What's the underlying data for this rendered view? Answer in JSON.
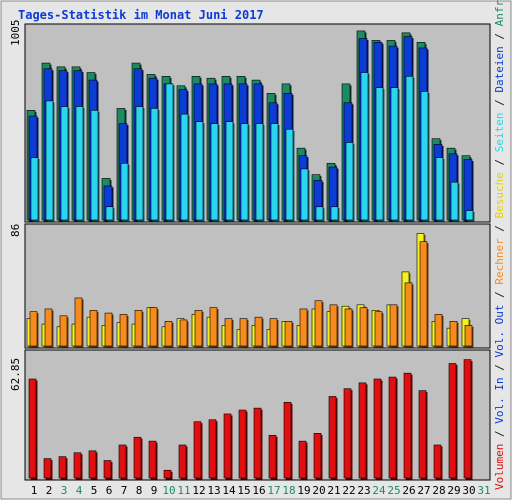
{
  "chart_data": [
    {
      "type": "bar",
      "panel": "top",
      "title": "Tages-Statistik im Monat Juni 2017",
      "y_max_label": "1005",
      "ylim": [
        0,
        1005
      ],
      "categories": [
        "1",
        "2",
        "3",
        "4",
        "5",
        "6",
        "7",
        "8",
        "9",
        "10",
        "11",
        "12",
        "13",
        "14",
        "15",
        "16",
        "17",
        "18",
        "19",
        "20",
        "21",
        "22",
        "23",
        "24",
        "25",
        "26",
        "27",
        "28",
        "29",
        "30",
        "31"
      ],
      "weekend_days": [
        "3",
        "4",
        "10",
        "11",
        "17",
        "18",
        "24",
        "25",
        "31"
      ],
      "series": [
        {
          "name": "Anfragen",
          "color": "#1d8a63",
          "values": [
            580,
            830,
            810,
            810,
            780,
            220,
            590,
            830,
            770,
            760,
            710,
            760,
            750,
            760,
            760,
            740,
            670,
            720,
            380,
            240,
            300,
            720,
            1000,
            950,
            950,
            990,
            940,
            430,
            380,
            340,
            0
          ]
        },
        {
          "name": "Dateien",
          "color": "#0d3bd6",
          "values": [
            550,
            800,
            790,
            790,
            740,
            180,
            510,
            800,
            750,
            720,
            690,
            720,
            720,
            720,
            720,
            720,
            620,
            670,
            340,
            210,
            280,
            620,
            960,
            940,
            920,
            970,
            910,
            400,
            350,
            320,
            0
          ]
        },
        {
          "name": "Seiten",
          "color": "#2bd5ee",
          "values": [
            330,
            630,
            600,
            600,
            580,
            70,
            300,
            600,
            590,
            720,
            560,
            520,
            510,
            520,
            510,
            510,
            510,
            480,
            270,
            70,
            70,
            410,
            780,
            700,
            700,
            760,
            680,
            330,
            200,
            50,
            0
          ]
        }
      ]
    },
    {
      "type": "bar",
      "panel": "middle",
      "y_max_label": "86",
      "ylim": [
        0,
        86
      ],
      "categories": [
        "1",
        "2",
        "3",
        "4",
        "5",
        "6",
        "7",
        "8",
        "9",
        "10",
        "11",
        "12",
        "13",
        "14",
        "15",
        "16",
        "17",
        "18",
        "19",
        "20",
        "21",
        "22",
        "23",
        "24",
        "25",
        "26",
        "27",
        "28",
        "29",
        "30",
        "31"
      ],
      "series": [
        {
          "name": "Besuche",
          "color": "#f2f21c",
          "values": [
            20,
            16,
            14,
            16,
            21,
            15,
            17,
            16,
            28,
            14,
            20,
            23,
            21,
            15,
            12,
            15,
            12,
            18,
            15,
            27,
            25,
            29,
            30,
            26,
            30,
            54,
            82,
            18,
            13,
            20,
            0
          ]
        },
        {
          "name": "Rechner",
          "color": "#f78c1c",
          "values": [
            25,
            27,
            22,
            35,
            26,
            24,
            23,
            26,
            28,
            18,
            19,
            26,
            28,
            20,
            20,
            21,
            20,
            18,
            27,
            33,
            30,
            27,
            28,
            25,
            30,
            46,
            76,
            23,
            18,
            15,
            0
          ]
        }
      ]
    },
    {
      "type": "bar",
      "panel": "bottom",
      "y_max_label": "62.85",
      "ylim": [
        0,
        62.85
      ],
      "categories": [
        "1",
        "2",
        "3",
        "4",
        "5",
        "6",
        "7",
        "8",
        "9",
        "10",
        "11",
        "12",
        "13",
        "14",
        "15",
        "16",
        "17",
        "18",
        "19",
        "20",
        "21",
        "22",
        "23",
        "24",
        "25",
        "26",
        "27",
        "28",
        "29",
        "30",
        "31"
      ],
      "series": [
        {
          "name": "Volumen",
          "color": "#e10f0f",
          "values": [
            51,
            10,
            11,
            13,
            14,
            9,
            17,
            21,
            19,
            4,
            17,
            29,
            30,
            33,
            35,
            36,
            22,
            39,
            19,
            23,
            42,
            46,
            49,
            51,
            52,
            54,
            45,
            17,
            59,
            61,
            0
          ]
        }
      ]
    }
  ],
  "legend_right": [
    {
      "text": "Volumen",
      "color": "#e10f0f"
    },
    {
      "text": " / ",
      "color": "#222222"
    },
    {
      "text": "Vol. In",
      "color": "#0d3bd6"
    },
    {
      "text": " / ",
      "color": "#222222"
    },
    {
      "text": "Vol. Out",
      "color": "#0d3bd6"
    },
    {
      "text": " / ",
      "color": "#222222"
    },
    {
      "text": "Rechner",
      "color": "#f78c1c"
    },
    {
      "text": " / ",
      "color": "#222222"
    },
    {
      "text": "Besuche",
      "color": "#e2d400"
    },
    {
      "text": " / ",
      "color": "#222222"
    },
    {
      "text": "Seiten",
      "color": "#2bd5ee"
    },
    {
      "text": " / ",
      "color": "#222222"
    },
    {
      "text": "Dateien",
      "color": "#0d3bd6"
    },
    {
      "text": " / ",
      "color": "#222222"
    },
    {
      "text": "Anfragen",
      "color": "#1d8a63"
    }
  ],
  "colors": {
    "background": "#c0c0c0",
    "frame": "#e6e6e6",
    "title": "#0d3bd6",
    "weekday_label": "#000000",
    "weekend_label": "#1d8a63"
  }
}
